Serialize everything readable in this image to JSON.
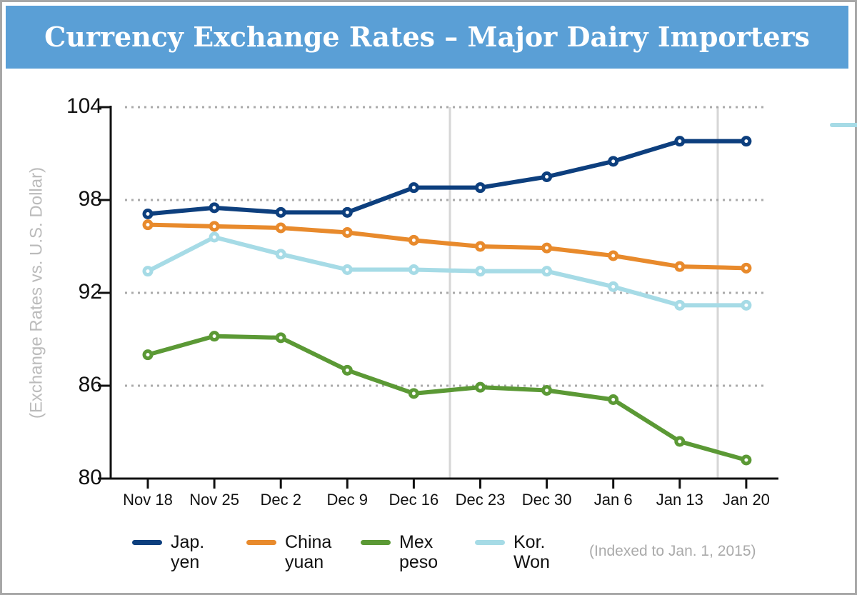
{
  "chart_data": {
    "type": "line",
    "title": "Currency Exchange Rates – Major Dairy Importers",
    "y_label": "(Exchange Rates vs. U.S. Dollar)",
    "note": "(Indexed to Jan. 1, 2015)",
    "categories": [
      "Nov 18",
      "Nov 25",
      "Dec 2",
      "Dec 9",
      "Dec 16",
      "Dec 23",
      "Dec 30",
      "Jan 6",
      "Jan 13",
      "Jan 20"
    ],
    "series": [
      {
        "name": "Jap. yen",
        "color": "#0d3f7e",
        "values": [
          97.1,
          97.5,
          97.2,
          97.2,
          98.8,
          98.8,
          99.5,
          100.5,
          101.8,
          101.8
        ]
      },
      {
        "name": "China yuan",
        "color": "#e88a2c",
        "values": [
          96.4,
          96.3,
          96.2,
          95.9,
          95.4,
          95.0,
          94.9,
          94.4,
          93.7,
          93.6
        ]
      },
      {
        "name": "Mex peso",
        "color": "#5b9935",
        "values": [
          88.0,
          89.2,
          89.1,
          87.0,
          85.5,
          85.9,
          85.7,
          85.1,
          82.4,
          81.2
        ]
      },
      {
        "name": "Kor. Won",
        "color": "#a6dbe6",
        "values": [
          93.4,
          95.6,
          94.5,
          93.5,
          93.5,
          93.4,
          93.4,
          92.4,
          91.2,
          91.2
        ]
      }
    ],
    "ylim": [
      80,
      104
    ],
    "yticks": [
      80,
      86,
      92,
      98,
      104
    ],
    "grid": true
  }
}
